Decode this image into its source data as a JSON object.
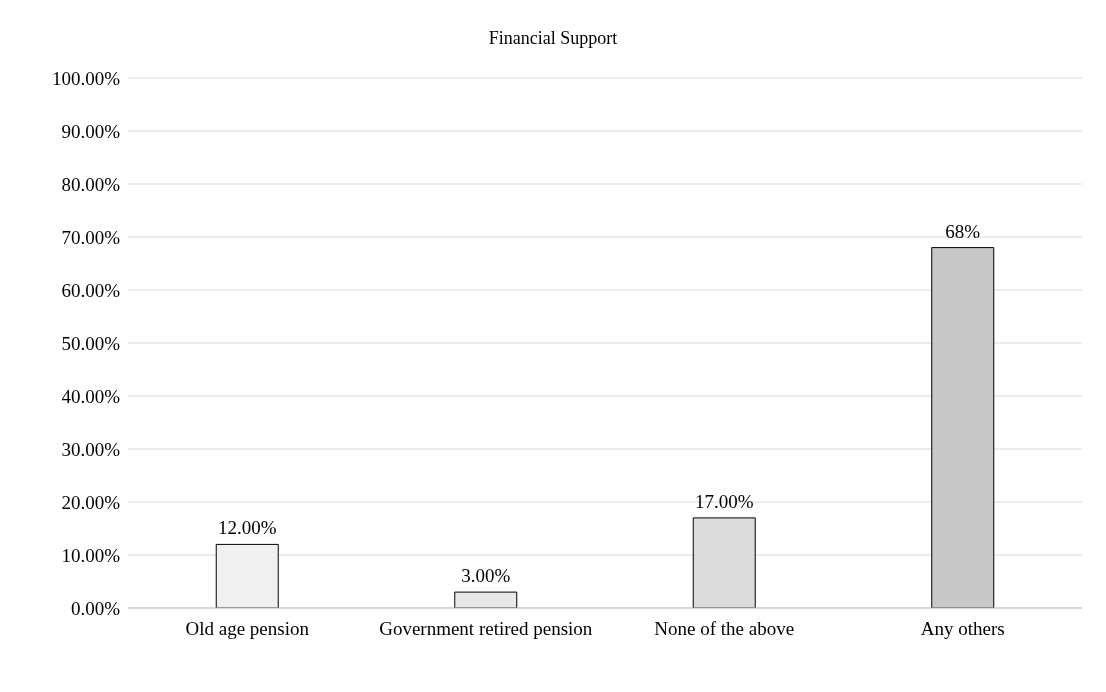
{
  "chart_data": {
    "type": "bar",
    "title": "Financial Support",
    "categories": [
      "Old age pension",
      "Government retired pension",
      "None of the above",
      "Any others"
    ],
    "values": [
      12,
      3,
      17,
      68
    ],
    "colors": [
      "#f0f0f0",
      "#e8e8e8",
      "#dcdcdc",
      "#c8c8c8"
    ],
    "value_labels": [
      "12.00%",
      "3.00%",
      "17.00%",
      "68%"
    ],
    "ylim": [
      0,
      100
    ],
    "yticks": [
      {
        "value": 0,
        "label": "0.00%"
      },
      {
        "value": 10,
        "label": "10.00%"
      },
      {
        "value": 20,
        "label": "20.00%"
      },
      {
        "value": 30,
        "label": "30.00%"
      },
      {
        "value": 40,
        "label": "40.00%"
      },
      {
        "value": 50,
        "label": "50.00%"
      },
      {
        "value": 60,
        "label": "60.00%"
      },
      {
        "value": 70,
        "label": "70.00%"
      },
      {
        "value": 80,
        "label": "80.00%"
      },
      {
        "value": 90,
        "label": "90.00%"
      },
      {
        "value": 100,
        "label": "100.00%"
      }
    ],
    "grid": "y",
    "legend": false
  }
}
